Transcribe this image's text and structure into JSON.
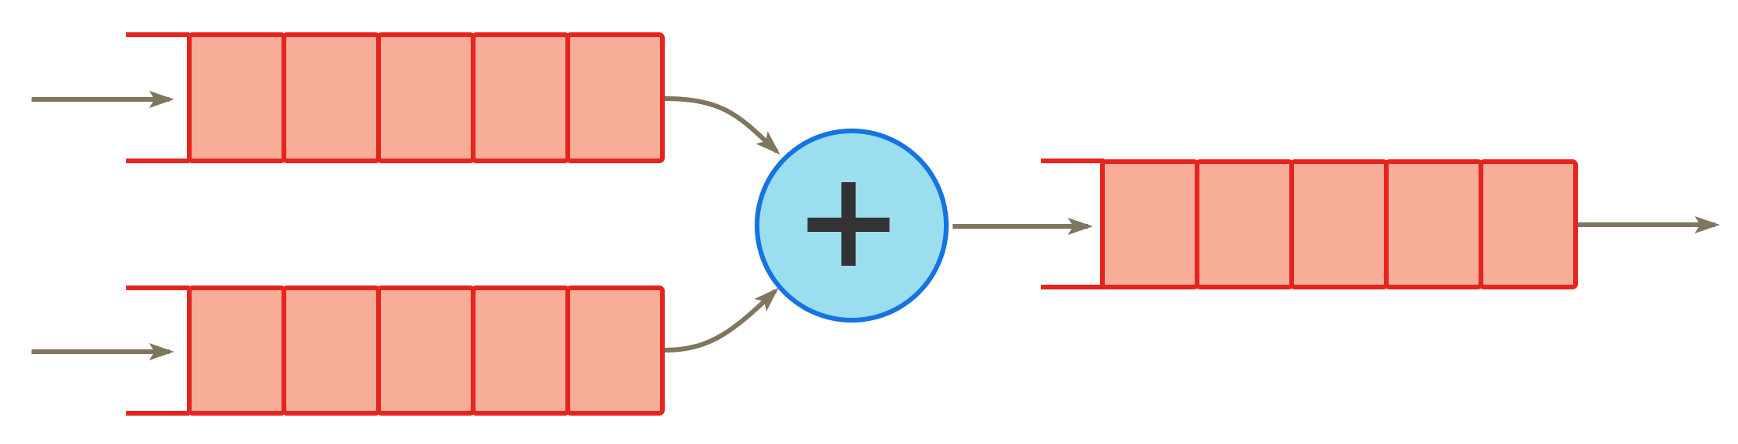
{
  "diagram": {
    "queues": [
      {
        "id": "input-queue-top",
        "cells": 5
      },
      {
        "id": "input-queue-bottom",
        "cells": 5
      },
      {
        "id": "output-queue",
        "cells": 5
      }
    ],
    "operator": {
      "symbol": "plus",
      "name": "adder"
    },
    "colors": {
      "cell_fill": "#f7ad97",
      "cell_stroke": "#e52420",
      "node_fill": "#9adeef",
      "node_stroke": "#1573e2",
      "symbol": "#333333",
      "arrow": "#807660",
      "background": "#ffffff"
    }
  }
}
